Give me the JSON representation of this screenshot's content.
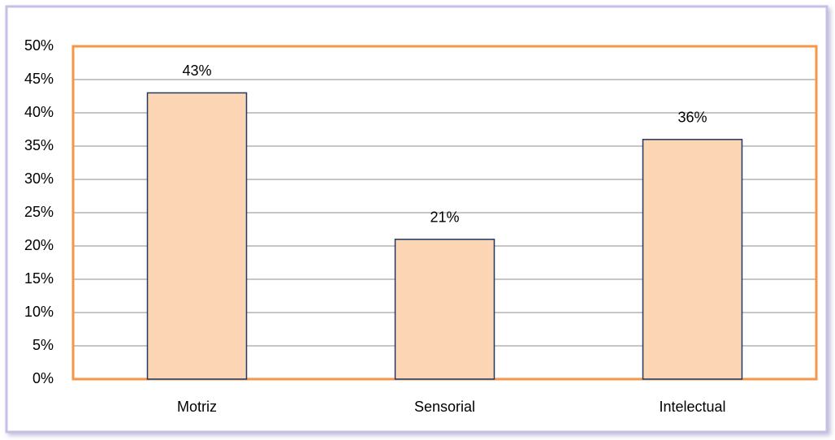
{
  "chart_data": {
    "type": "bar",
    "categories": [
      "Motriz",
      "Sensorial",
      "Intelectual"
    ],
    "values": [
      43,
      21,
      36
    ],
    "value_labels": [
      "43%",
      "21%",
      "36%"
    ],
    "color": "#fcd5b5",
    "ylim": [
      0,
      50
    ],
    "yticks": [
      {
        "value": 0,
        "label": "0%"
      },
      {
        "value": 5,
        "label": "5%"
      },
      {
        "value": 10,
        "label": "10%"
      },
      {
        "value": 15,
        "label": "15%"
      },
      {
        "value": 20,
        "label": "20%"
      },
      {
        "value": 25,
        "label": "25%"
      },
      {
        "value": 30,
        "label": "30%"
      },
      {
        "value": 35,
        "label": "35%"
      },
      {
        "value": 40,
        "label": "40%"
      },
      {
        "value": 45,
        "label": "45%"
      },
      {
        "value": 50,
        "label": "50%"
      }
    ],
    "grid": true
  }
}
